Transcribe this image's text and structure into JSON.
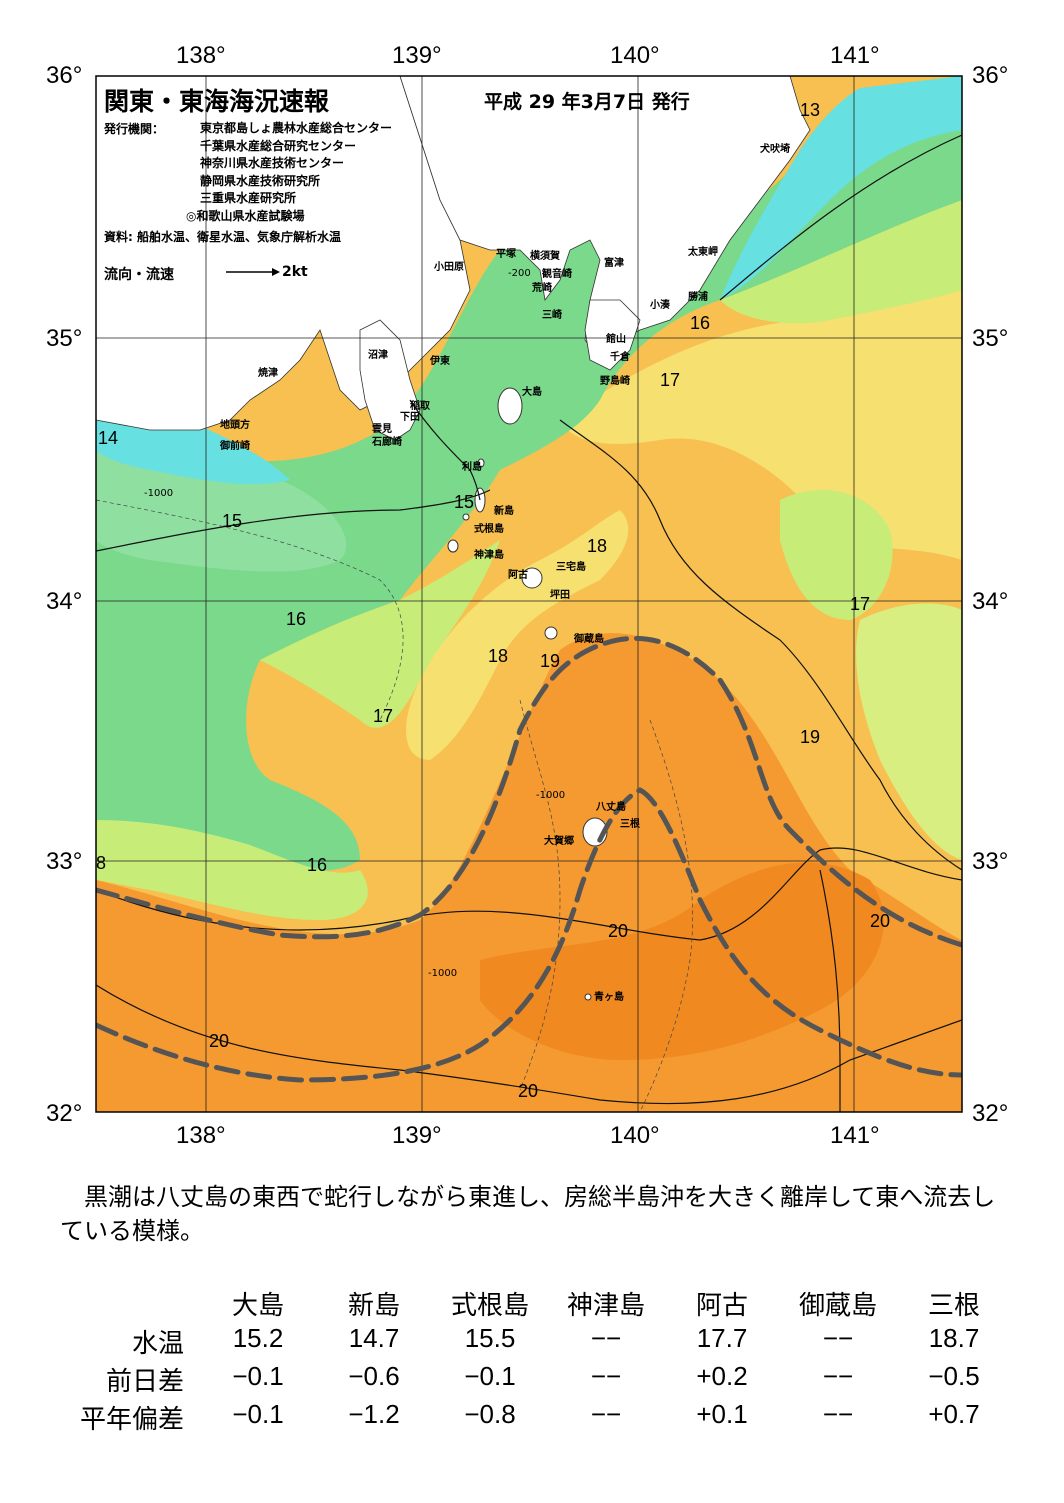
{
  "header": {
    "title": "関東・東海海況速報",
    "date": "平成 29 年3月7日 発行",
    "publisher_label": "発行機関：",
    "publishers": [
      "東京都島しょ農林水産総合センター",
      "千葉県水産総合研究センター",
      "神奈川県水産技術センター",
      "静岡県水産技術研究所",
      "三重県水産研究所",
      "◎和歌山県水産試験場"
    ],
    "source": "資料: 船舶水温、衛星水温、気象庁解析水温",
    "flow_label": "流向・流速",
    "flow_speed": "2kt"
  },
  "axes": {
    "lon_labels": [
      "138°",
      "139°",
      "140°",
      "141°"
    ],
    "lat_labels": [
      "36°",
      "35°",
      "34°",
      "33°",
      "32°"
    ]
  },
  "colors": {
    "land": "#ffffff",
    "cold": "#66e0e0",
    "cool": "#7ad98a",
    "mid": "#c8ec78",
    "warm": "#f5e070",
    "warmer": "#f7c050",
    "hot": "#f59a30",
    "kuroshio_axis": "#555555"
  },
  "places": {
    "inubozaki": "犬吠埼",
    "taitomisaki": "太東岬",
    "katsuura": "勝浦",
    "kominato": "小湊",
    "tomitsu": "富津",
    "kannonzaki": "観音崎",
    "yokosuka": "横須賀",
    "hiratsuka": "平塚",
    "odawara": "小田原",
    "arasaki": "荒崎",
    "misaki": "三崎",
    "tateyama": "館山",
    "chikura": "千倉",
    "nojimazaki": "野島崎",
    "numazu": "沼津",
    "ito": "伊東",
    "yaizu": "焼津",
    "inatori": "稲取",
    "shimoda": "下田",
    "kumomi": "雲見",
    "irozaki": "石廊崎",
    "jitokata": "地頭方",
    "omaezaki": "御前崎",
    "oshima": "大島",
    "toshima": "利島",
    "niijima": "新島",
    "shikinejima": "式根島",
    "kozushima": "神津島",
    "miyakejima": "三宅島",
    "ako": "阿古",
    "tsubota": "坪田",
    "mikurajima": "御蔵島",
    "hachijojima": "八丈島",
    "mitsune": "三根",
    "okago": "大賀郷",
    "aogashima": "青ヶ島"
  },
  "isotherm_labels": [
    "13",
    "16",
    "17",
    "14",
    "15",
    "15",
    "18",
    "16",
    "17",
    "18",
    "19",
    "17",
    "19",
    "16",
    "8",
    "20",
    "20",
    "20",
    "20"
  ],
  "depth_labels": [
    "-200",
    "-1000"
  ],
  "summary_text": "黒潮は八丈島の東西で蛇行しながら東進し、房総半島沖を大きく離岸して東へ流去している模様。",
  "table": {
    "columns": [
      "大島",
      "新島",
      "式根島",
      "神津島",
      "阿古",
      "御蔵島",
      "三根"
    ],
    "rows": [
      {
        "label": "水温",
        "values": [
          "15.2",
          "14.7",
          "15.5",
          "−−",
          "17.7",
          "−−",
          "18.7"
        ]
      },
      {
        "label": "前日差",
        "values": [
          "−0.1",
          "−0.6",
          "−0.1",
          "−−",
          "+0.2",
          "−−",
          "−0.5"
        ]
      },
      {
        "label": "平年偏差",
        "values": [
          "−0.1",
          "−1.2",
          "−0.8",
          "−−",
          "+0.1",
          "−−",
          "+0.7"
        ]
      }
    ]
  }
}
